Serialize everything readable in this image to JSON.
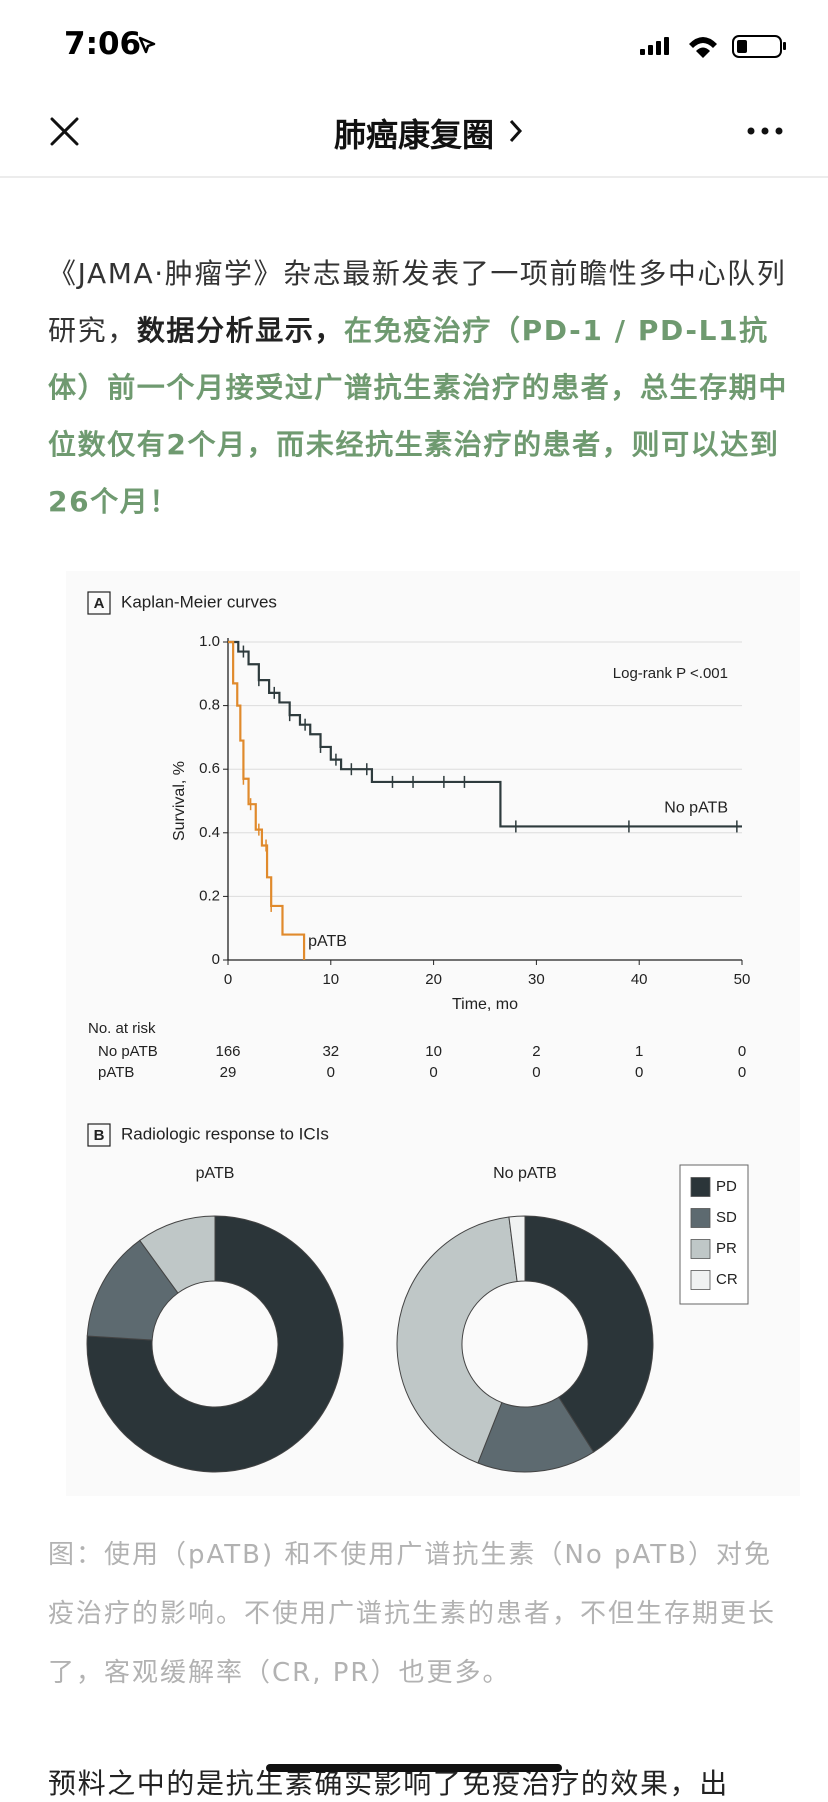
{
  "status_bar": {
    "time": "7:06"
  },
  "nav": {
    "title": "肺癌康复圈"
  },
  "article": {
    "paragraph": [
      {
        "text": "《JAMA·肿瘤学》杂志最新发表了一项前瞻性多中心队列研究，",
        "style": "normal"
      },
      {
        "text": "数据分析显示，",
        "style": "bold"
      },
      {
        "text": "在免疫治疗（PD-1 / PD-L1抗体）前一个月接受过广谱抗生素治疗的患者，总生存期中位数仅有2个月，而未经抗生素治疗的患者，则可以达到26个月！",
        "style": "green"
      }
    ],
    "caption": "图：使用（pATB) 和不使用广谱抗生素（No pATB）对免疫治疗的影响。不使用广谱抗生素的患者，不但生存期更长了，客观缓解率（CR, PR）也更多。",
    "next_paragraph": "预料之中的是抗生素确实影响了免疫治疗的效果，出"
  },
  "chart_data": [
    {
      "type": "step",
      "panel": "A",
      "title": "Kaplan-Meier curves",
      "annotation": "Log-rank P <.001",
      "xlabel": "Time, mo",
      "ylabel": "Survival, %",
      "xlim": [
        0,
        50
      ],
      "xticks": [
        0,
        10,
        20,
        30,
        40,
        50
      ],
      "ylim": [
        0,
        1
      ],
      "yticks": [
        0,
        0.2,
        0.4,
        0.6,
        0.8,
        {
          "value": 1,
          "label": "1.0"
        }
      ],
      "grid": true,
      "series": [
        {
          "name": "No pATB",
          "color": "#2e3b3d",
          "x": [
            0,
            1,
            2,
            3,
            4,
            5,
            6,
            7,
            8,
            9,
            10,
            11,
            14,
            26.5,
            50
          ],
          "values": [
            1,
            0.97,
            0.93,
            0.88,
            0.84,
            0.81,
            0.77,
            0.74,
            0.71,
            0.67,
            0.63,
            0.6,
            0.56,
            0.42,
            0.42
          ],
          "censored": [
            1.5,
            3,
            4.5,
            6,
            7.5,
            9,
            10.5,
            12,
            13.5,
            16,
            18,
            21,
            23,
            28,
            39,
            49.5
          ]
        },
        {
          "name": "pATB",
          "color": "#e08a2c",
          "x": [
            0,
            0.5,
            0.9,
            1.2,
            1.5,
            2,
            2.7,
            3.3,
            3.8,
            4.2,
            5.3,
            7.4
          ],
          "values": [
            1,
            0.87,
            0.8,
            0.69,
            0.57,
            0.49,
            0.41,
            0.36,
            0.26,
            0.17,
            0.08,
            0
          ],
          "censored": [
            1.5,
            2.2,
            3,
            3.7,
            4.2
          ]
        }
      ],
      "risk_table": {
        "title": "No. at risk",
        "rows": [
          {
            "name": "No pATB",
            "values": [
              166,
              32,
              10,
              2,
              1,
              0
            ]
          },
          {
            "name": "pATB",
            "values": [
              29,
              0,
              0,
              0,
              0,
              0
            ]
          }
        ]
      }
    },
    {
      "type": "donut",
      "panel": "B",
      "title": "Radiologic response to ICIs",
      "categories": [
        "PD",
        "SD",
        "PR",
        "CR"
      ],
      "colors": [
        "#2b3539",
        "#5d6a70",
        "#bfc7c7",
        "#f0f2f2"
      ],
      "series": [
        {
          "name": "pATB",
          "values": [
            76,
            14,
            10,
            0
          ]
        },
        {
          "name": "No pATB",
          "values": [
            41,
            15,
            42,
            2
          ]
        }
      ]
    }
  ]
}
